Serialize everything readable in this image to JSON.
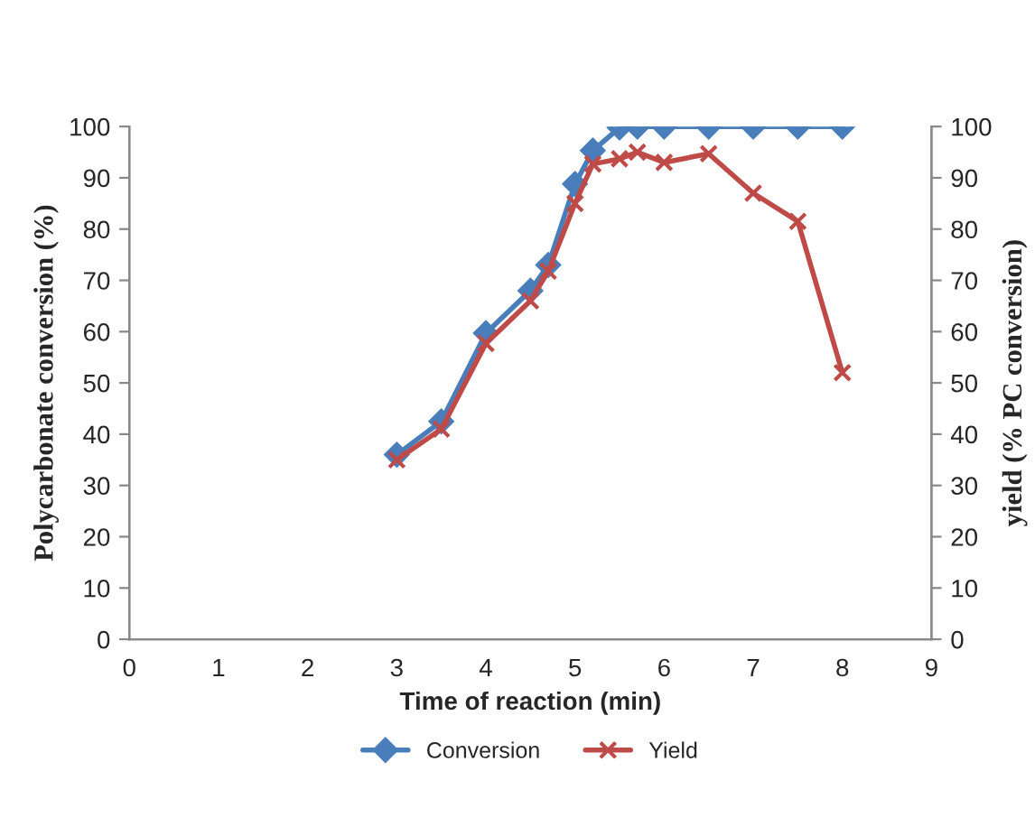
{
  "chart_data": {
    "type": "line",
    "xlabel": "Time of reaction (min)",
    "ylabel": "Polycarbonate conversion (%)",
    "y2label": "yield (% PC conversion)",
    "x": [
      3,
      3.5,
      4,
      4.5,
      4.7,
      5,
      5.2,
      5.5,
      5.7,
      6,
      6.5,
      7,
      7.5,
      8
    ],
    "series": [
      {
        "name": "Conversion",
        "color": "#4a7ebb",
        "marker": "diamond",
        "values": [
          36,
          42.5,
          59.7,
          68,
          73,
          88.8,
          95.3,
          99.8,
          100,
          100,
          100,
          100,
          100,
          100
        ]
      },
      {
        "name": "Yield",
        "color": "#be4b48",
        "marker": "cross",
        "values": [
          35,
          41,
          57.7,
          66,
          71.8,
          85,
          92.7,
          93.7,
          95,
          93,
          94.7,
          87,
          81.5,
          52
        ]
      }
    ],
    "xlim": [
      0,
      9
    ],
    "xticks": [
      0,
      1,
      2,
      3,
      4,
      5,
      6,
      7,
      8,
      9
    ],
    "ylim": [
      0,
      100
    ],
    "yticks": [
      0,
      10,
      20,
      30,
      40,
      50,
      60,
      70,
      80,
      90,
      100
    ],
    "y2lim": [
      0,
      100
    ],
    "y2ticks": [
      0,
      10,
      20,
      30,
      40,
      50,
      60,
      70,
      80,
      90,
      100
    ],
    "grid": false,
    "legend": "bottom"
  }
}
